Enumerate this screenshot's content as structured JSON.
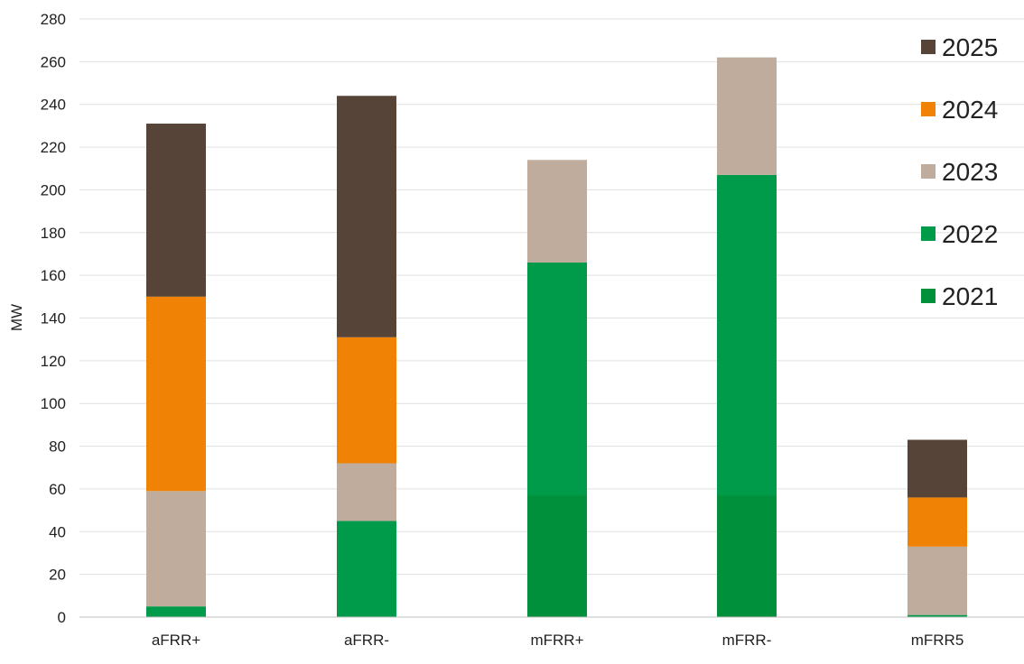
{
  "chart_data": {
    "type": "bar",
    "stacked": true,
    "title": "",
    "xlabel": "",
    "ylabel": "MW",
    "ylim": [
      0,
      280
    ],
    "yticks": [
      0,
      20,
      40,
      60,
      80,
      100,
      120,
      140,
      160,
      180,
      200,
      220,
      240,
      260,
      280
    ],
    "grid": true,
    "legend_position": "top-right",
    "categories": [
      "aFRR+",
      "aFRR-",
      "mFRR+",
      "mFRR-",
      "mFRR5"
    ],
    "series": [
      {
        "name": "2021",
        "color": "#008f3a",
        "values": [
          0,
          0,
          57,
          57,
          0
        ]
      },
      {
        "name": "2022",
        "color": "#009a4b",
        "values": [
          5,
          45,
          109,
          150,
          1
        ]
      },
      {
        "name": "2023",
        "color": "#bfac9d",
        "values": [
          54,
          27,
          48,
          55,
          32
        ]
      },
      {
        "name": "2024",
        "color": "#f08305",
        "values": [
          91,
          59,
          0,
          0,
          23
        ]
      },
      {
        "name": "2025",
        "color": "#574438",
        "values": [
          81,
          113,
          0,
          0,
          27
        ]
      }
    ]
  }
}
